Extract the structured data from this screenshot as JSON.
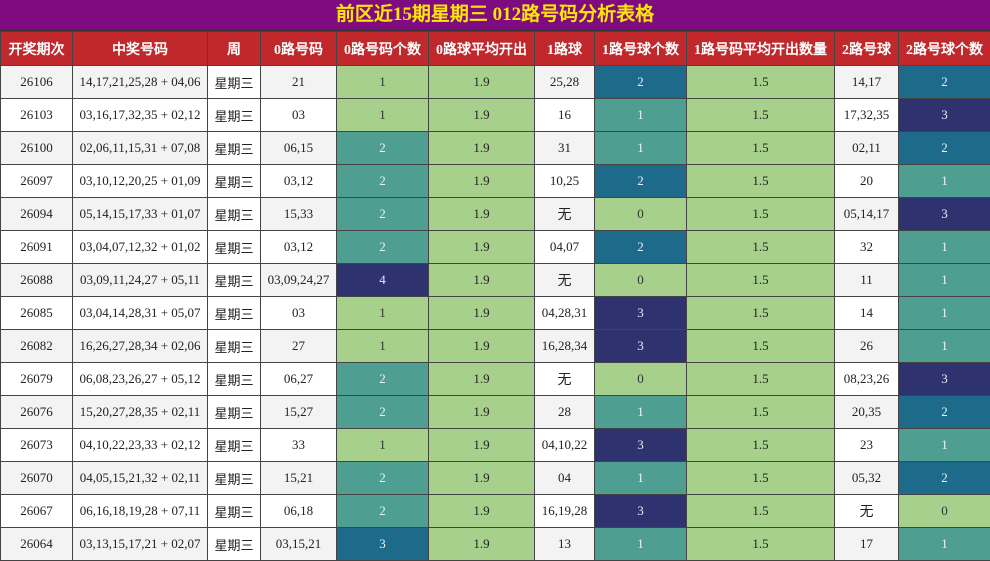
{
  "title": "前区近15期星期三 012路号码分析表格",
  "headers": [
    "开奖期次",
    "中奖号码",
    "周",
    "0路号码",
    "0路号码个数",
    "0路球平均开出",
    "1路球",
    "1路号球个数",
    "1路号码平均开出数量",
    "2路号球",
    "2路号球个数"
  ],
  "colors": {
    "light": "#a7d08c",
    "teal": "#4f9e92",
    "blue": "#1e6a8a",
    "navy": "#2e3370",
    "header": "#c0282c",
    "title_bg": "#7e0b80",
    "title_fg": "#ffe600"
  },
  "rows": [
    {
      "issue": "26106",
      "numbers": "14,17,21,25,28 + 04,06",
      "week": "星期三",
      "r0": "21",
      "r0n": "1",
      "r0avg": "1.9",
      "r1": "25,28",
      "r1n": "2",
      "r1avg": "1.5",
      "r2": "14,17",
      "r2n": "2"
    },
    {
      "issue": "26103",
      "numbers": "03,16,17,32,35 + 02,12",
      "week": "星期三",
      "r0": "03",
      "r0n": "1",
      "r0avg": "1.9",
      "r1": "16",
      "r1n": "1",
      "r1avg": "1.5",
      "r2": "17,32,35",
      "r2n": "3"
    },
    {
      "issue": "26100",
      "numbers": "02,06,11,15,31 + 07,08",
      "week": "星期三",
      "r0": "06,15",
      "r0n": "2",
      "r0avg": "1.9",
      "r1": "31",
      "r1n": "1",
      "r1avg": "1.5",
      "r2": "02,11",
      "r2n": "2"
    },
    {
      "issue": "26097",
      "numbers": "03,10,12,20,25 + 01,09",
      "week": "星期三",
      "r0": "03,12",
      "r0n": "2",
      "r0avg": "1.9",
      "r1": "10,25",
      "r1n": "2",
      "r1avg": "1.5",
      "r2": "20",
      "r2n": "1"
    },
    {
      "issue": "26094",
      "numbers": "05,14,15,17,33 + 01,07",
      "week": "星期三",
      "r0": "15,33",
      "r0n": "2",
      "r0avg": "1.9",
      "r1": "无",
      "r1n": "0",
      "r1avg": "1.5",
      "r2": "05,14,17",
      "r2n": "3"
    },
    {
      "issue": "26091",
      "numbers": "03,04,07,12,32 + 01,02",
      "week": "星期三",
      "r0": "03,12",
      "r0n": "2",
      "r0avg": "1.9",
      "r1": "04,07",
      "r1n": "2",
      "r1avg": "1.5",
      "r2": "32",
      "r2n": "1"
    },
    {
      "issue": "26088",
      "numbers": "03,09,11,24,27 + 05,11",
      "week": "星期三",
      "r0": "03,09,24,27",
      "r0n": "4",
      "r0avg": "1.9",
      "r1": "无",
      "r1n": "0",
      "r1avg": "1.5",
      "r2": "11",
      "r2n": "1"
    },
    {
      "issue": "26085",
      "numbers": "03,04,14,28,31 + 05,07",
      "week": "星期三",
      "r0": "03",
      "r0n": "1",
      "r0avg": "1.9",
      "r1": "04,28,31",
      "r1n": "3",
      "r1avg": "1.5",
      "r2": "14",
      "r2n": "1"
    },
    {
      "issue": "26082",
      "numbers": "16,26,27,28,34 + 02,06",
      "week": "星期三",
      "r0": "27",
      "r0n": "1",
      "r0avg": "1.9",
      "r1": "16,28,34",
      "r1n": "3",
      "r1avg": "1.5",
      "r2": "26",
      "r2n": "1"
    },
    {
      "issue": "26079",
      "numbers": "06,08,23,26,27 + 05,12",
      "week": "星期三",
      "r0": "06,27",
      "r0n": "2",
      "r0avg": "1.9",
      "r1": "无",
      "r1n": "0",
      "r1avg": "1.5",
      "r2": "08,23,26",
      "r2n": "3"
    },
    {
      "issue": "26076",
      "numbers": "15,20,27,28,35 + 02,11",
      "week": "星期三",
      "r0": "15,27",
      "r0n": "2",
      "r0avg": "1.9",
      "r1": "28",
      "r1n": "1",
      "r1avg": "1.5",
      "r2": "20,35",
      "r2n": "2"
    },
    {
      "issue": "26073",
      "numbers": "04,10,22,23,33 + 02,12",
      "week": "星期三",
      "r0": "33",
      "r0n": "1",
      "r0avg": "1.9",
      "r1": "04,10,22",
      "r1n": "3",
      "r1avg": "1.5",
      "r2": "23",
      "r2n": "1"
    },
    {
      "issue": "26070",
      "numbers": "04,05,15,21,32 + 02,11",
      "week": "星期三",
      "r0": "15,21",
      "r0n": "2",
      "r0avg": "1.9",
      "r1": "04",
      "r1n": "1",
      "r1avg": "1.5",
      "r2": "05,32",
      "r2n": "2"
    },
    {
      "issue": "26067",
      "numbers": "06,16,18,19,28 + 07,11",
      "week": "星期三",
      "r0": "06,18",
      "r0n": "2",
      "r0avg": "1.9",
      "r1": "16,19,28",
      "r1n": "3",
      "r1avg": "1.5",
      "r2": "无",
      "r2n": "0"
    },
    {
      "issue": "26064",
      "numbers": "03,13,15,17,21 + 02,07",
      "week": "星期三",
      "r0": "03,15,21",
      "r0n": "3",
      "r0avg": "1.9",
      "r1": "13",
      "r1n": "1",
      "r1avg": "1.5",
      "r2": "17",
      "r2n": "1"
    }
  ]
}
